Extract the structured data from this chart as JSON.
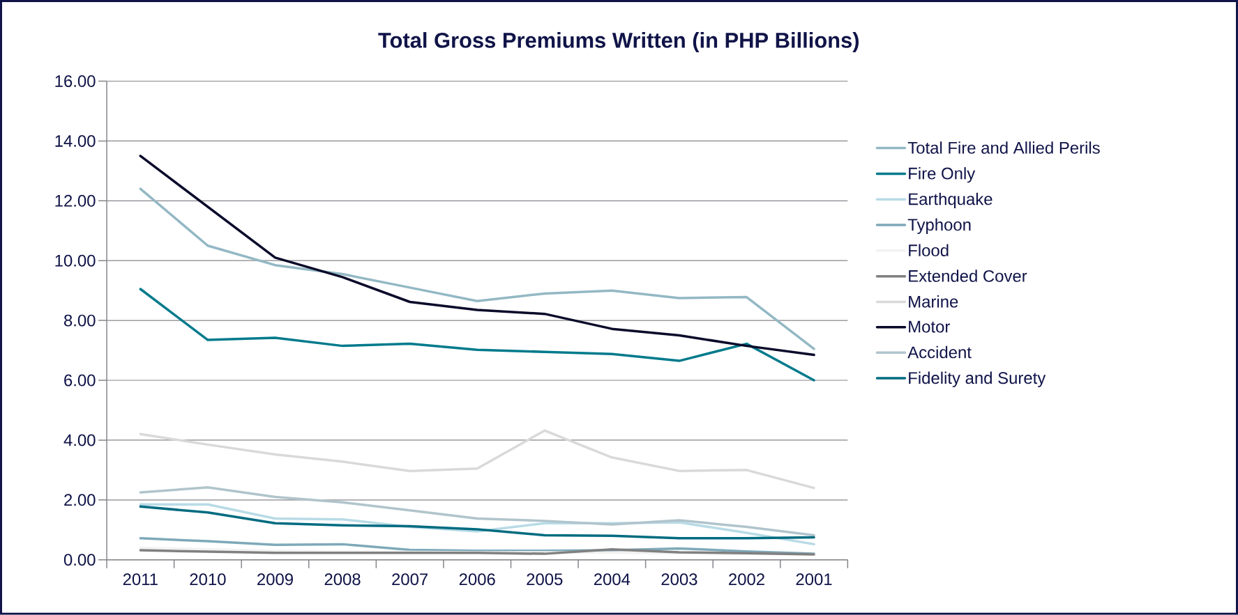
{
  "chart_data": {
    "type": "line",
    "title": "Total Gross Premiums Written (in PHP Billions)",
    "categories": [
      "2011",
      "2010",
      "2009",
      "2008",
      "2007",
      "2006",
      "2005",
      "2004",
      "2003",
      "2002",
      "2001"
    ],
    "series": [
      {
        "name": "Total Fire and Allied Perils",
        "color": "#93b8c4",
        "values": [
          12.4,
          10.5,
          9.85,
          9.55,
          9.1,
          8.65,
          8.9,
          9.0,
          8.75,
          8.78,
          7.05
        ]
      },
      {
        "name": "Fire Only",
        "color": "#007a8c",
        "values": [
          9.05,
          7.35,
          7.42,
          7.15,
          7.22,
          7.02,
          6.95,
          6.88,
          6.65,
          7.22,
          6.0
        ]
      },
      {
        "name": "Earthquake",
        "color": "#b8dbe6",
        "values": [
          1.85,
          1.85,
          1.38,
          1.35,
          1.1,
          0.95,
          1.22,
          1.22,
          1.25,
          0.9,
          0.52
        ]
      },
      {
        "name": "Typhoon",
        "color": "#7ea9b9",
        "values": [
          0.72,
          0.62,
          0.5,
          0.52,
          0.33,
          0.3,
          0.3,
          0.32,
          0.38,
          0.28,
          0.2
        ]
      },
      {
        "name": "Flood",
        "color": "#f2f2f2",
        "values": [
          0.4,
          0.35,
          0.3,
          0.28,
          0.26,
          0.25,
          0.25,
          0.24,
          0.22,
          0.2,
          0.18
        ]
      },
      {
        "name": "Extended Cover",
        "color": "#808080",
        "values": [
          0.32,
          0.27,
          0.23,
          0.23,
          0.23,
          0.23,
          0.2,
          0.35,
          0.25,
          0.22,
          0.18
        ]
      },
      {
        "name": "Marine",
        "color": "#d9d9d9",
        "values": [
          4.2,
          3.85,
          3.52,
          3.28,
          2.97,
          3.05,
          4.32,
          3.42,
          2.97,
          3.0,
          2.4
        ]
      },
      {
        "name": "Motor",
        "color": "#0a0a2a",
        "values": [
          13.5,
          11.8,
          10.1,
          9.45,
          8.62,
          8.35,
          8.22,
          7.72,
          7.5,
          7.15,
          6.85
        ]
      },
      {
        "name": "Accident",
        "color": "#b0c4cc",
        "values": [
          2.25,
          2.42,
          2.1,
          1.92,
          1.65,
          1.38,
          1.3,
          1.18,
          1.32,
          1.1,
          0.82
        ]
      },
      {
        "name": "Fidelity and Surety",
        "color": "#006b80",
        "values": [
          1.78,
          1.58,
          1.22,
          1.15,
          1.12,
          1.02,
          0.82,
          0.8,
          0.72,
          0.72,
          0.75
        ]
      }
    ],
    "ylim": [
      0,
      16
    ],
    "yticks": [
      {
        "value": 0,
        "label": "0.00"
      },
      {
        "value": 2,
        "label": "2.00"
      },
      {
        "value": 4,
        "label": "4.00"
      },
      {
        "value": 6,
        "label": "6.00"
      },
      {
        "value": 8,
        "label": "8.00"
      },
      {
        "value": 10,
        "label": "10.00"
      },
      {
        "value": 12,
        "label": "12.00"
      },
      {
        "value": 14,
        "label": "14.00"
      },
      {
        "value": 16,
        "label": "16.00"
      }
    ],
    "grid": "y",
    "legend": "right",
    "marker": "none",
    "line_style": "solid"
  }
}
